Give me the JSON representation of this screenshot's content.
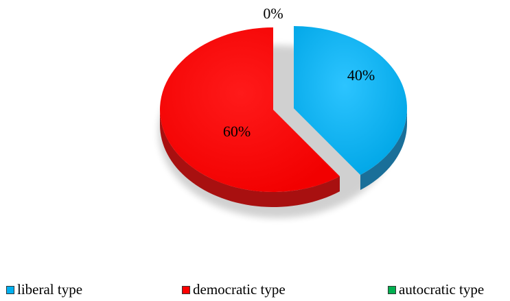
{
  "chart_data": {
    "type": "pie",
    "title": "",
    "categories": [
      "liberal type",
      "democratic type",
      "autocratic type"
    ],
    "values": [
      40,
      60,
      0
    ],
    "labels": [
      "40%",
      "60%",
      "0%"
    ],
    "colors": [
      "#00B0F0",
      "#FF0000",
      "#00B050"
    ],
    "legend_position": "bottom",
    "style": "3d-exploded"
  },
  "legend": {
    "items": [
      {
        "label": "liberal type",
        "color": "#00B0F0"
      },
      {
        "label": "democratic type",
        "color": "#FF0000"
      },
      {
        "label": "autocratic type",
        "color": "#00B050"
      }
    ]
  }
}
